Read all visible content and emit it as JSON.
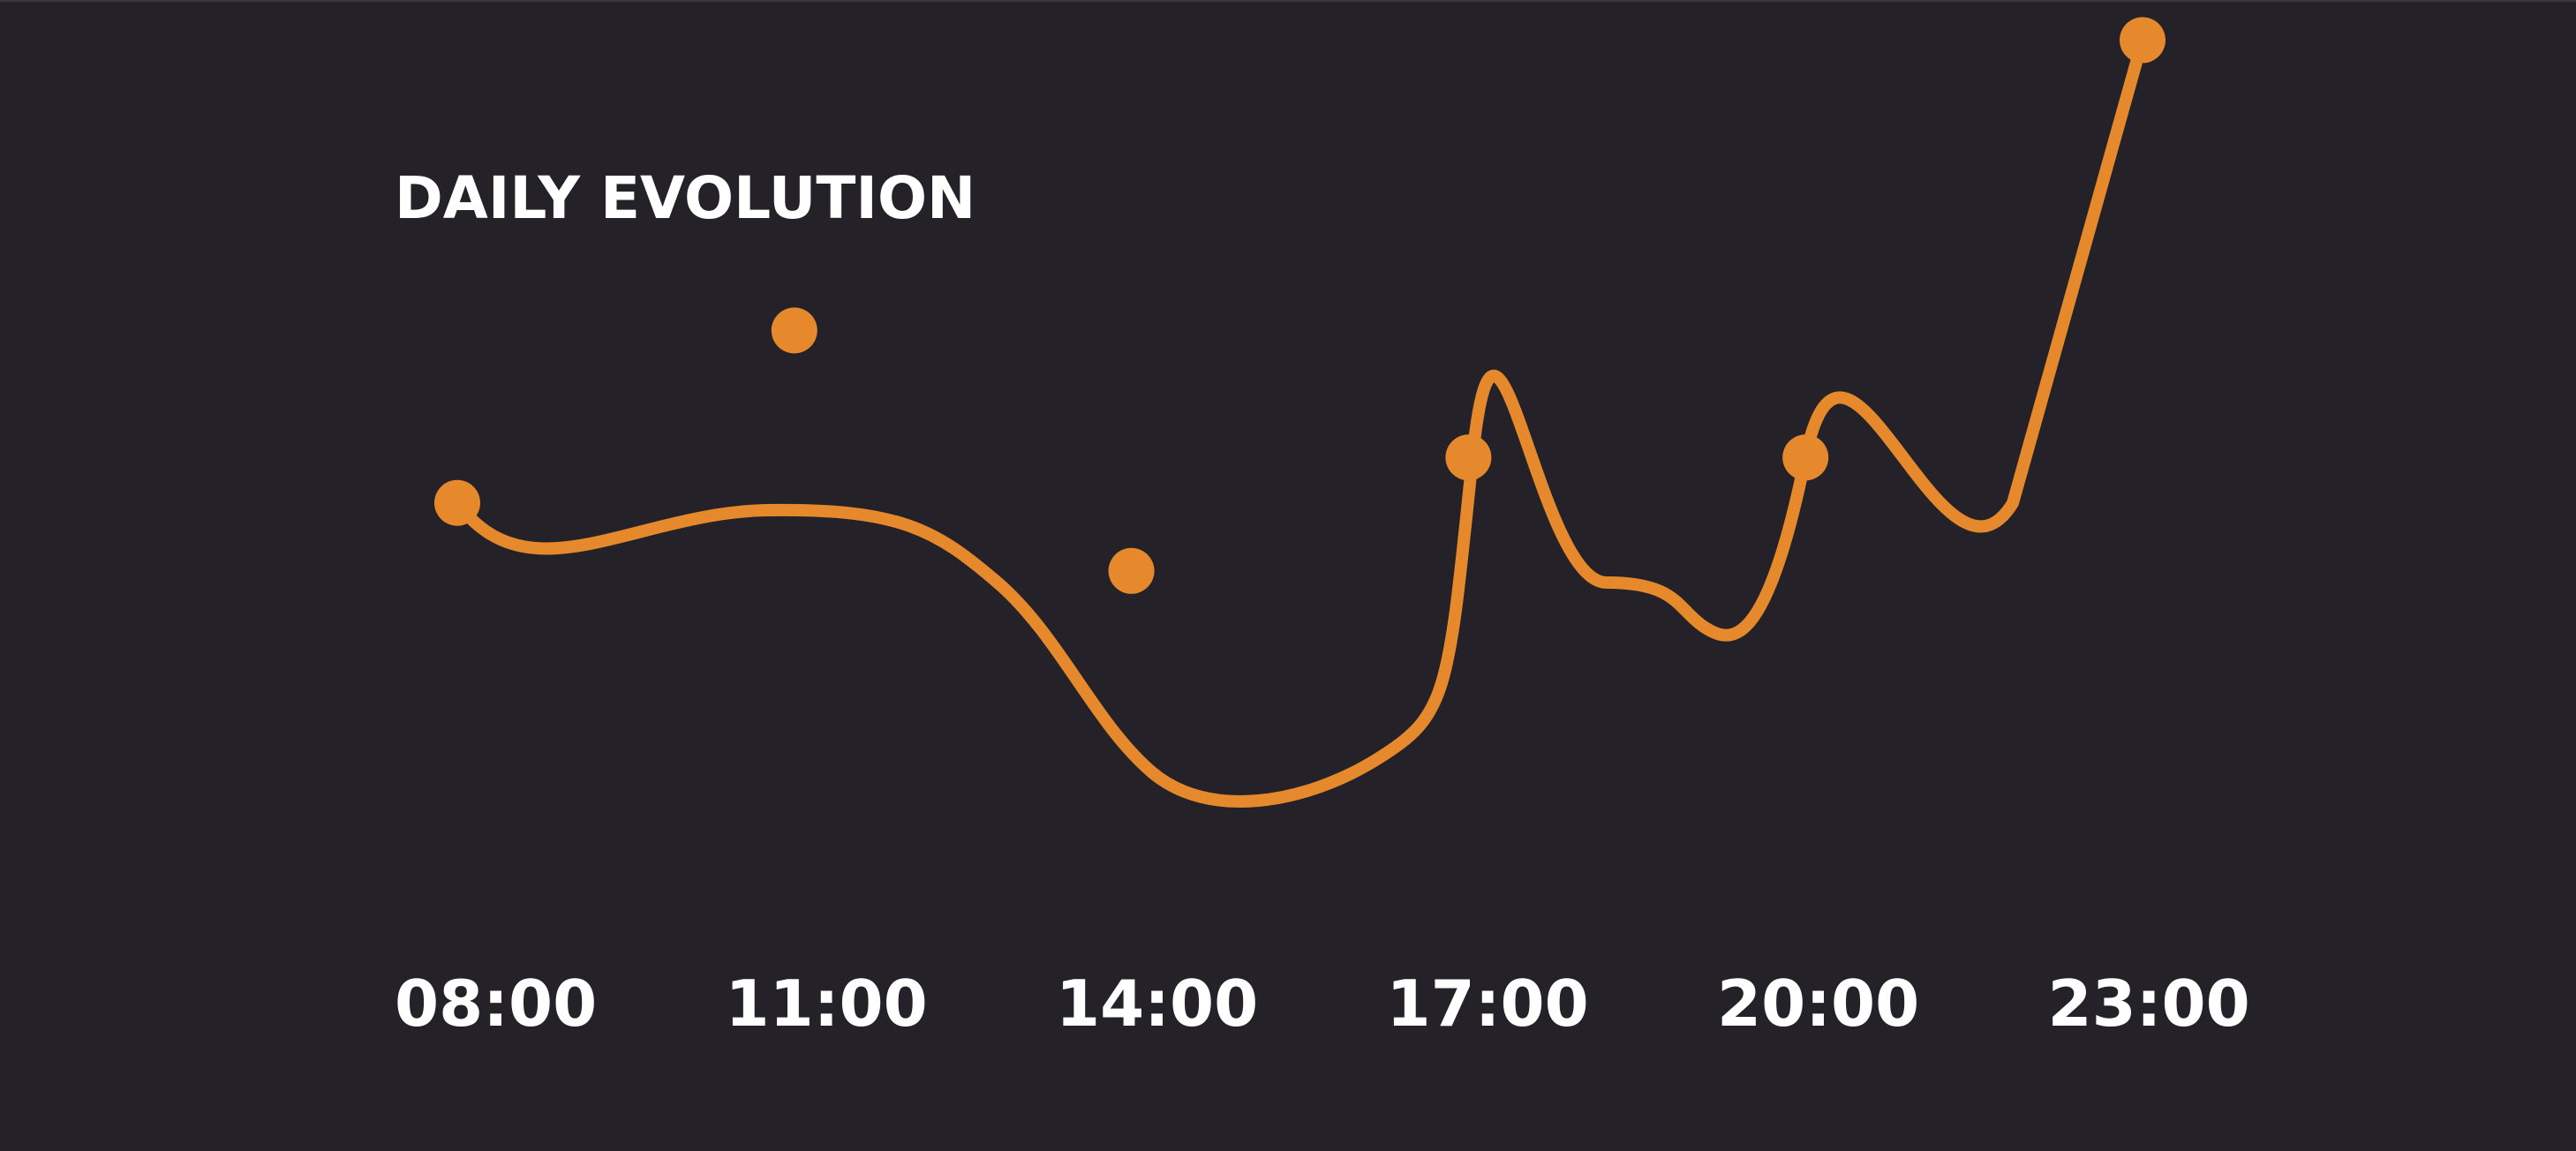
{
  "colors": {
    "background": "#242228",
    "line": "#E5892C",
    "text": "#FFFFFF"
  },
  "chart": {
    "title": "DAILY EVOLUTION"
  },
  "chart_data": {
    "type": "line",
    "title": "DAILY EVOLUTION",
    "xlabel": "",
    "ylabel": "",
    "grid": false,
    "categories": [
      "08:00",
      "11:00",
      "14:00",
      "17:00",
      "20:00",
      "23:00"
    ],
    "series": [
      {
        "values": [
          47.5,
          66.5,
          40,
          52.5,
          52.5,
          98.5
        ]
      }
    ],
    "markers": [
      {
        "x": "08:00",
        "y": 47.5
      },
      {
        "x": "11:00",
        "y": 66.5
      },
      {
        "x": "14:00",
        "y": 40
      },
      {
        "x": "17:00",
        "y": 52.5
      },
      {
        "x": "20:00",
        "y": 52.5
      },
      {
        "x": "23:00",
        "y": 98.5
      }
    ],
    "ylim": [
      0,
      100
    ]
  }
}
